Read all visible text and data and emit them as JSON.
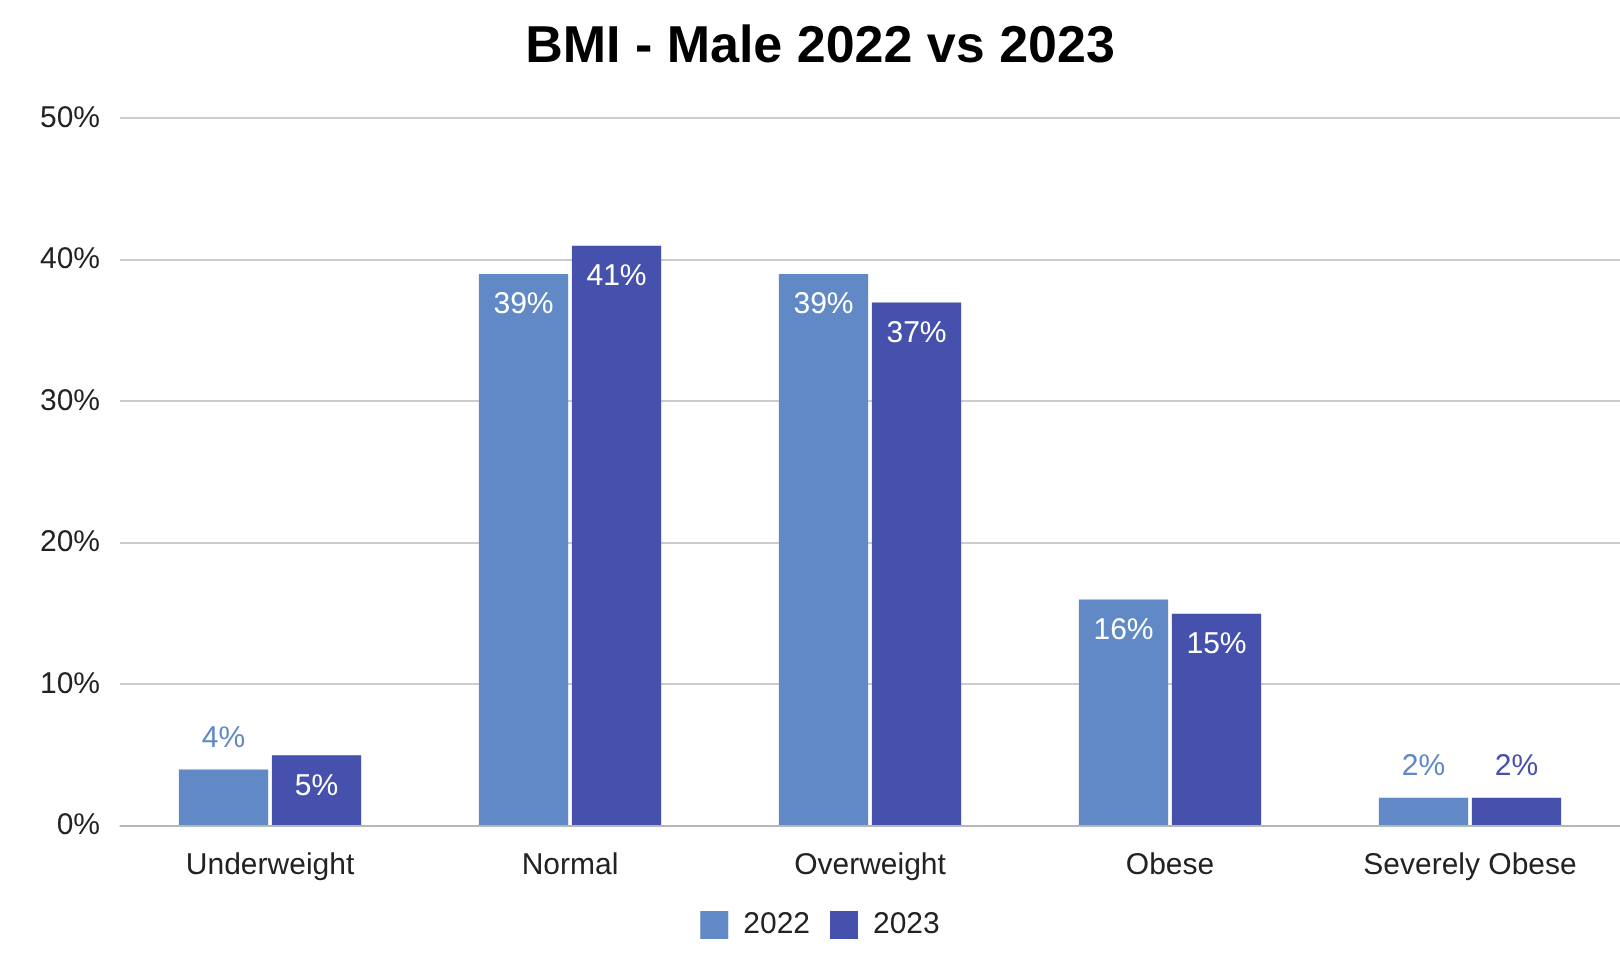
{
  "chart_data": {
    "type": "bar",
    "title": "BMI - Male 2022 vs 2023",
    "categories": [
      "Underweight",
      "Normal",
      "Overweight",
      "Obese",
      "Severely Obese"
    ],
    "series": [
      {
        "name": "2022",
        "color": "#6089c6",
        "values": [
          4,
          39,
          39,
          16,
          2
        ],
        "value_labels": [
          "4%",
          "39%",
          "39%",
          "16%",
          "2%"
        ]
      },
      {
        "name": "2023",
        "color": "#4650ad",
        "values": [
          5,
          41,
          37,
          15,
          2
        ],
        "value_labels": [
          "5%",
          "41%",
          "37%",
          "15%",
          "2%"
        ]
      }
    ],
    "ylim": [
      0,
      50
    ],
    "yticks": [
      {
        "value": 0,
        "label": "0%"
      },
      {
        "value": 10,
        "label": "10%"
      },
      {
        "value": 20,
        "label": "20%"
      },
      {
        "value": 30,
        "label": "30%"
      },
      {
        "value": 40,
        "label": "40%"
      },
      {
        "value": 50,
        "label": "50%"
      }
    ],
    "grid": "y",
    "legend": "bottom"
  }
}
